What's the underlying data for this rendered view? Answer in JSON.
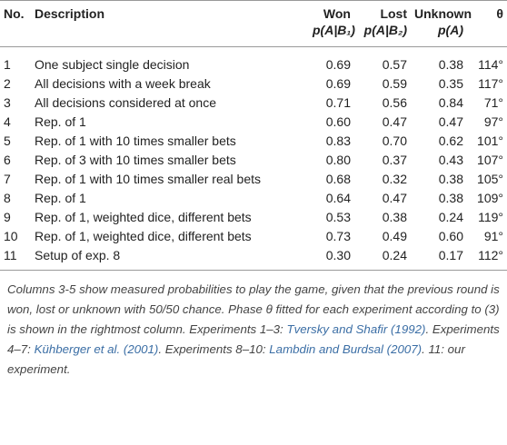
{
  "table": {
    "columns": [
      {
        "label": "No."
      },
      {
        "label": "Description"
      },
      {
        "label": "Won",
        "sub": "p(A|B₁)"
      },
      {
        "label": "Lost",
        "sub": "p(A|B₂)"
      },
      {
        "label": "Unknown",
        "sub": "p(A)"
      },
      {
        "label": "θ"
      }
    ],
    "rows": [
      [
        "1",
        "One subject single decision",
        "0.69",
        "0.57",
        "0.38",
        "114°"
      ],
      [
        "2",
        "All decisions with a week break",
        "0.69",
        "0.59",
        "0.35",
        "117°"
      ],
      [
        "3",
        "All decisions considered at once",
        "0.71",
        "0.56",
        "0.84",
        "71°"
      ],
      [
        "4",
        "Rep. of 1",
        "0.60",
        "0.47",
        "0.47",
        "97°"
      ],
      [
        "5",
        "Rep. of 1 with 10 times smaller bets",
        "0.83",
        "0.70",
        "0.62",
        "101°"
      ],
      [
        "6",
        "Rep. of 3 with 10 times smaller bets",
        "0.80",
        "0.37",
        "0.43",
        "107°"
      ],
      [
        "7",
        "Rep. of 1 with 10 times smaller real bets",
        "0.68",
        "0.32",
        "0.38",
        "105°"
      ],
      [
        "8",
        "Rep. of 1",
        "0.64",
        "0.47",
        "0.38",
        "109°"
      ],
      [
        "9",
        "Rep. of 1, weighted dice, different bets",
        "0.53",
        "0.38",
        "0.24",
        "119°"
      ],
      [
        "10",
        "Rep. of 1, weighted dice, different bets",
        "0.73",
        "0.49",
        "0.60",
        "91°"
      ],
      [
        "11",
        "Setup of exp. 8",
        "0.30",
        "0.24",
        "0.17",
        "112°"
      ]
    ]
  },
  "caption": [
    {
      "text": "Columns 3-5 show measured probabilities to play the game, given that the previous round is won, lost or unknown with 50/50 chance. Phase θ fitted for each experiment according to (3) is shown in the rightmost column. Experiments 1–3: ",
      "cite": false
    },
    {
      "text": "Tversky and Shafir (1992)",
      "cite": true
    },
    {
      "text": ". Experiments 4–7: ",
      "cite": false
    },
    {
      "text": "Kühberger et al. (2001)",
      "cite": true
    },
    {
      "text": ". Experiments 8–10: ",
      "cite": false
    },
    {
      "text": "Lambdin and Burdsal (2007)",
      "cite": true
    },
    {
      "text": ". 11: our experiment.",
      "cite": false
    }
  ]
}
